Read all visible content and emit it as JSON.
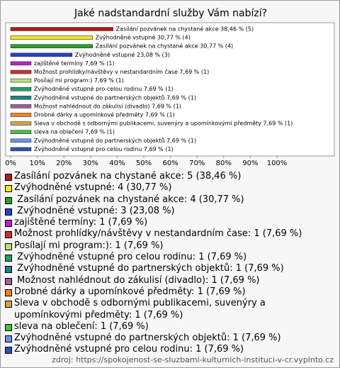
{
  "chart_data": {
    "type": "bar",
    "orientation": "horizontal",
    "title": "Jaké nadstandardní služby Vám nabízí?",
    "categories": [
      "Zasílání pozvánek na chystané akce",
      "Zvýhodněné vstupné",
      " Zasílání pozvánek na chystané akce",
      " Zvýhodněné vstupné",
      "zajištěné termíny",
      "Možnost prohlídky/návštěvy v nestandardním čase",
      "Posílají mi program:)",
      " Zvýhodněné vstupné pro celou rodinu",
      " Zvýhodněné vstupné do partnerských objektů",
      " Možnost nahlédnout do zákulisí (divadlo)",
      "Drobné dárky a upomínkové předměty",
      "Sleva v obchodě s odbornými publikacemi, suvenýry a upomínkovými předměty",
      "sleva na oblečení",
      "Zvýhodněné vstupné do partnerských objektů",
      "Zvýhodněné vstupné pro celou rodinu"
    ],
    "values": [
      38.46,
      30.77,
      30.77,
      23.08,
      7.69,
      7.69,
      7.69,
      7.69,
      7.69,
      7.69,
      7.69,
      7.69,
      7.69,
      7.69,
      7.69
    ],
    "value_labels": [
      "Zasílání pozvánek na chystané akce 38,46 % (5)",
      "Zvýhodněné vstupné 30,77 % (4)",
      " Zasílání pozvánek na chystané akce 30,77 % (4)",
      " Zvýhodněné vstupné 23,08 % (3)",
      "zajištěné termíny 7,69 % (1)",
      "Možnost prohlídky/návštěvy v nestandardním čase 7,69 % (1)",
      "Posílají mi program:) 7,69 % (1)",
      " Zvýhodněné vstupné pro celou rodinu 7,69 % (1)",
      " Zvýhodněné vstupné do partnerských objektů 7,69 % (1)",
      " Možnost nahlédnout do zákulisí (divadlo) 7,69 % (1)",
      "Drobné dárky a upomínkové předměty 7,69 % (1)",
      "Sleva v obchodě s odbornými publikacemi, suvenýry a upomínkovými předměty 7,69 % (1)",
      "sleva na oblečení 7,69 % (1)",
      "Zvýhodněné vstupné do partnerských objektů 7,69 % (1)",
      "Zvýhodněné vstupné pro celou rodinu 7,69 % (1)"
    ],
    "legend_labels": [
      "Zasílání pozvánek na chystané akce: 5 (38,46 %)",
      "Zvýhodněné vstupné: 4 (30,77 %)",
      " Zasílání pozvánek na chystané akce: 4 (30,77 %)",
      " Zvýhodněné vstupné: 3 (23,08 %)",
      "zajištěné termíny: 1 (7,69 %)",
      "Možnost prohlídky/návštěvy v nestandardním čase: 1 (7,69 %)",
      "Posílají mi program:): 1 (7,69 %)",
      " Zvýhodněné vstupné pro celou rodinu: 1 (7,69 %)",
      " Zvýhodněné vstupné do partnerských objektů: 1 (7,69 %)",
      " Možnost nahlédnout do zákulisí (divadlo): 1 (7,69 %)",
      "Drobné dárky a upomínkové předměty: 1 (7,69 %)",
      "Sleva v obchodě s odbornými publikacemi, suvenýry a upomínkovými předměty: 1 (7,69 %)",
      "sleva na oblečení: 1 (7,69 %)",
      "Zvýhodněné vstupné do partnerských objektů: 1 (7,69 %)",
      "Zvýhodněné vstupné pro celou rodinu: 1 (7,69 %)"
    ],
    "colors": [
      "#b01e1e",
      "#f2e61e",
      "#2ca02c",
      "#2c3fbf",
      "#c020c0",
      "#cc3030",
      "#b4e07a",
      "#22a062",
      "#208282",
      "#a06090",
      "#f08020",
      "#d4a444",
      "#44c044",
      "#6a94e0",
      "#3052b0"
    ],
    "xlim": [
      0,
      100
    ],
    "xticks": [
      {
        "value": 0,
        "label": "0%"
      },
      {
        "value": 10,
        "label": "10%"
      },
      {
        "value": 20,
        "label": "20%"
      },
      {
        "value": 30,
        "label": "30%"
      },
      {
        "value": 40,
        "label": "40%"
      },
      {
        "value": 50,
        "label": "50%"
      },
      {
        "value": 60,
        "label": "60%"
      },
      {
        "value": 70,
        "label": "70%"
      },
      {
        "value": 80,
        "label": "80%"
      },
      {
        "value": 90,
        "label": "90%"
      },
      {
        "value": 100,
        "label": "100%"
      }
    ],
    "source": "zdroj: https://spokojenost-se-sluzbami-kulturnich-instituci-v-cr.vyplnto.cz"
  }
}
